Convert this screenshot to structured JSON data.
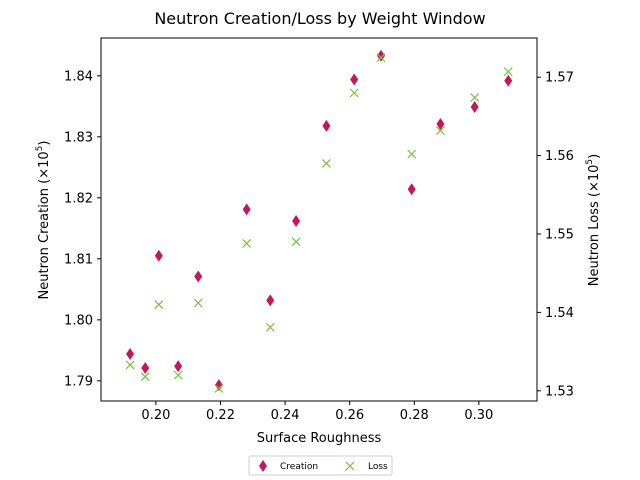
{
  "chart_data": {
    "type": "scatter",
    "title": "Neutron Creation/Loss by Weight Window",
    "xlabel": "Surface Roughness",
    "ylabel_left": "Neutron Creation (×10",
    "ylabel_right": "Neutron Loss (×10",
    "ylabel_exponent": "5",
    "ylabel_close": ")",
    "xlim": [
      0.183,
      0.318
    ],
    "ylim_left": [
      1.7867,
      1.8462
    ],
    "ylim_right": [
      1.5287,
      1.575
    ],
    "xticks": [
      0.2,
      0.22,
      0.24,
      0.26,
      0.28,
      0.3
    ],
    "xtick_labels": [
      "0.20",
      "0.22",
      "0.24",
      "0.26",
      "0.28",
      "0.30"
    ],
    "yticks_left": [
      1.79,
      1.8,
      1.81,
      1.82,
      1.83,
      1.84
    ],
    "ytick_labels_left": [
      "1.79",
      "1.80",
      "1.81",
      "1.82",
      "1.83",
      "1.84"
    ],
    "yticks_right": [
      1.53,
      1.54,
      1.55,
      1.56,
      1.57
    ],
    "ytick_labels_right": [
      "1.53",
      "1.54",
      "1.55",
      "1.56",
      "1.57"
    ],
    "grid": false,
    "legend_position": "bottom-center",
    "series": [
      {
        "name": "Creation",
        "axis": "left",
        "marker": "diamond",
        "color": "#c2185b",
        "x": [
          0.192,
          0.1967,
          0.2009,
          0.2069,
          0.2131,
          0.2195,
          0.2281,
          0.2354,
          0.2434,
          0.2528,
          0.2614,
          0.2697,
          0.2792,
          0.2881,
          0.2987,
          0.3091
        ],
        "y": [
          1.7944,
          1.7921,
          1.8105,
          1.7924,
          1.8071,
          1.7893,
          1.8181,
          1.8032,
          1.8162,
          1.8318,
          1.8394,
          1.8433,
          1.8214,
          1.8321,
          1.8349,
          1.8392
        ]
      },
      {
        "name": "Loss",
        "axis": "right",
        "marker": "x",
        "color": "#7cbd3e",
        "x": [
          0.192,
          0.1967,
          0.2009,
          0.2069,
          0.2131,
          0.2195,
          0.2281,
          0.2354,
          0.2434,
          0.2528,
          0.2614,
          0.2697,
          0.2792,
          0.2881,
          0.2987,
          0.3091
        ],
        "y": [
          1.5333,
          1.5318,
          1.541,
          1.532,
          1.5412,
          1.5303,
          1.5488,
          1.5381,
          1.549,
          1.559,
          1.568,
          1.5725,
          1.5602,
          1.5632,
          1.5674,
          1.5707
        ]
      }
    ]
  }
}
